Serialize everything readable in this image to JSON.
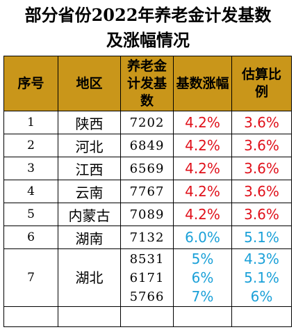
{
  "title": {
    "line1": "部分省份2022年养老金计发基数",
    "line2": "及涨幅情况"
  },
  "headers": [
    "序号",
    "地区",
    "养老金计发基数",
    "基数涨幅",
    "估算比例"
  ],
  "rows": [
    {
      "no": "1",
      "region": "陕西",
      "base": "7202",
      "increase": "4.2%",
      "ratio": "3.6%"
    },
    {
      "no": "2",
      "region": "河北",
      "base": "6849",
      "increase": "4.2%",
      "ratio": "3.6%"
    },
    {
      "no": "3",
      "region": "江西",
      "base": "6569",
      "increase": "4.2%",
      "ratio": "3.6%"
    },
    {
      "no": "4",
      "region": "云南",
      "base": "7767",
      "increase": "4.2%",
      "ratio": "3.6%"
    },
    {
      "no": "5",
      "region": "内蒙古",
      "base": "7089",
      "increase": "4.2%",
      "ratio": "3.6%"
    },
    {
      "no": "6",
      "region": "湖南",
      "base": "7132",
      "increase": "6.0%",
      "ratio": "5.1%"
    },
    {
      "no": "7",
      "region": "湖北",
      "base": [
        "8531",
        "6171",
        "5766"
      ],
      "increase": [
        "5%",
        "6%",
        "7%"
      ],
      "ratio": [
        "4.3%",
        "5.1%",
        "6%"
      ]
    }
  ],
  "colors": {
    "header_bg": "#c9961a",
    "red_value": "#e0101a",
    "blue_value": "#1aa0d8"
  }
}
